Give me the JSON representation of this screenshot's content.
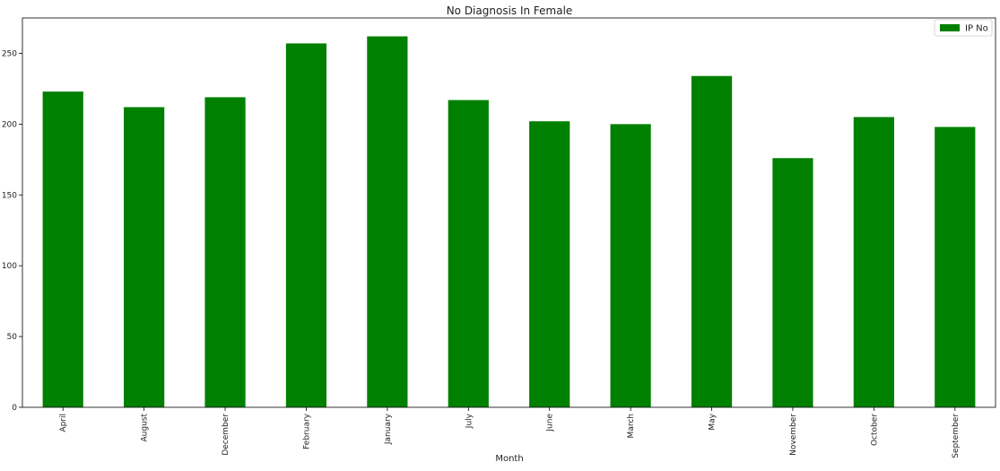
{
  "chart_data": {
    "type": "bar",
    "title": "No Diagnosis In Female",
    "xlabel": "Month",
    "ylabel": "",
    "categories": [
      "April",
      "August",
      "December",
      "February",
      "January",
      "July",
      "June",
      "March",
      "May",
      "November",
      "October",
      "September"
    ],
    "series": [
      {
        "name": "IP No",
        "color": "#008000",
        "values": [
          223,
          212,
          219,
          257,
          262,
          217,
          202,
          200,
          234,
          176,
          205,
          198
        ]
      }
    ],
    "ylim": [
      0,
      275
    ],
    "yticks": [
      0,
      50,
      100,
      150,
      200,
      250
    ],
    "grid": false,
    "legend_position": "top-right"
  }
}
